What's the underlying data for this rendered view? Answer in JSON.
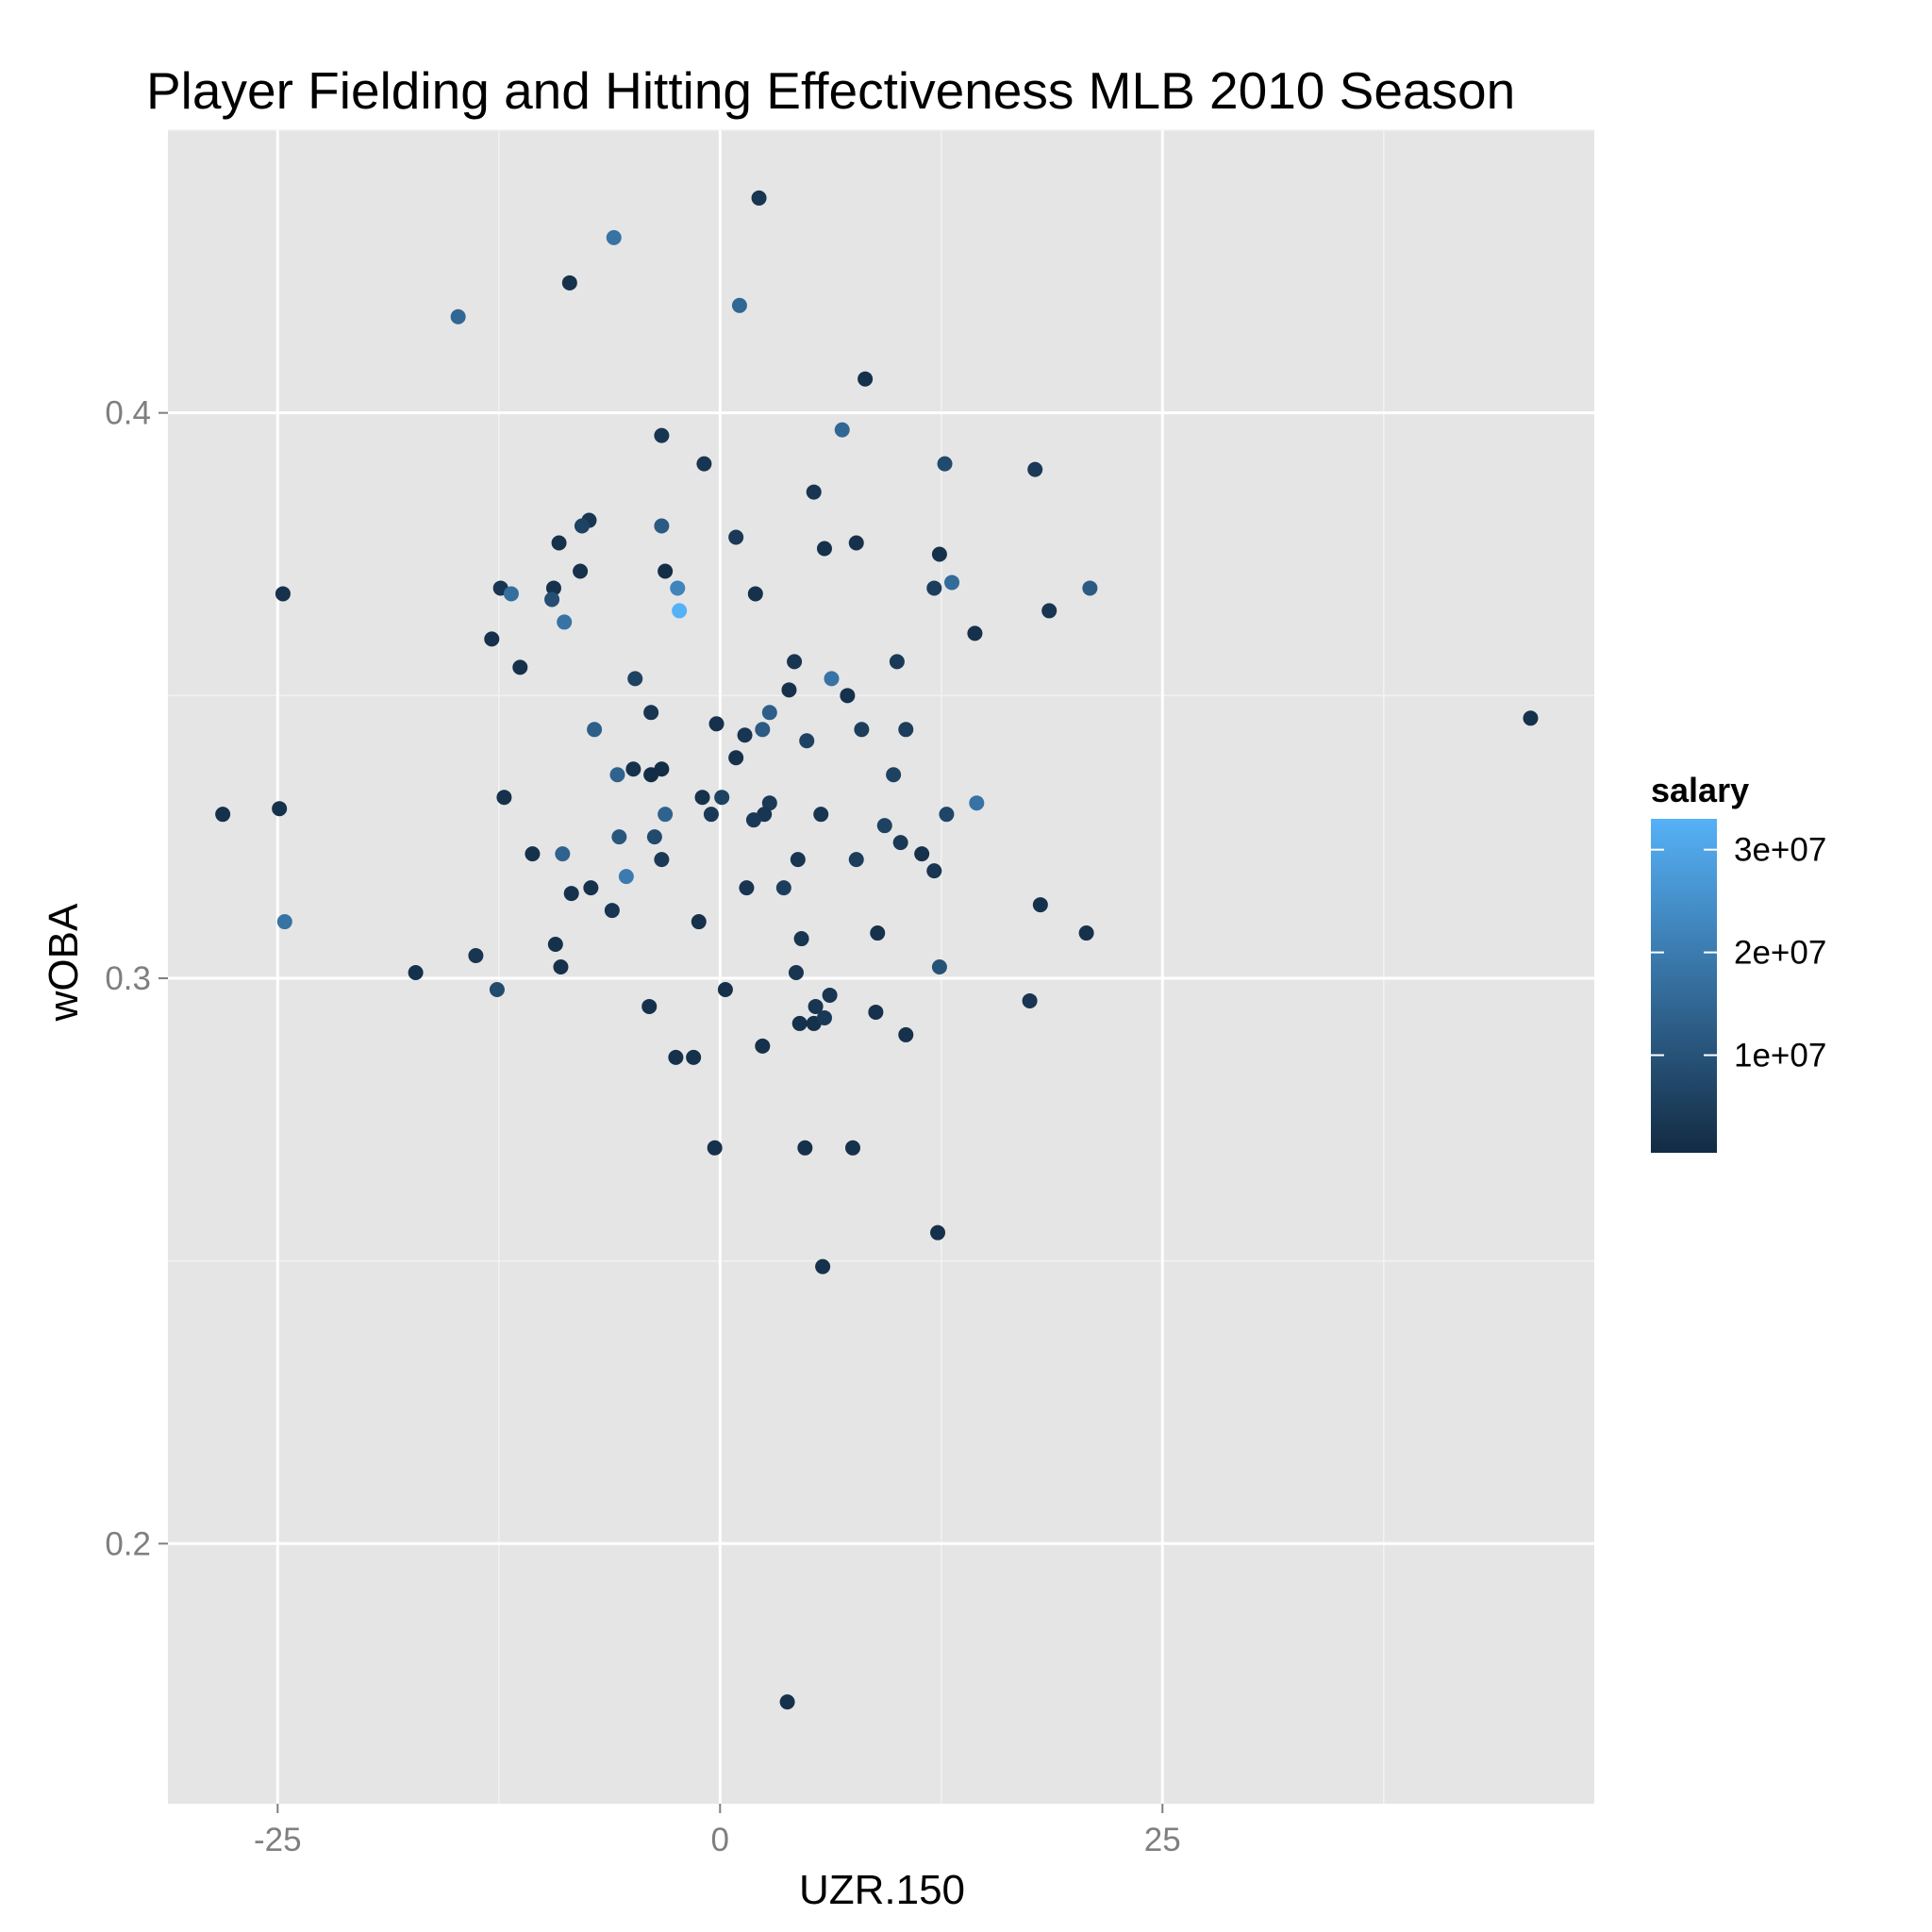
{
  "chart_data": {
    "type": "scatter",
    "title": "Player Fielding and Hitting Effectiveness MLB 2010 Season",
    "xlabel": "UZR.150",
    "ylabel": "wOBA",
    "xlim": [
      -31.2,
      49.4
    ],
    "ylim": [
      0.154,
      0.45
    ],
    "x_ticks": [
      -25,
      0,
      25
    ],
    "x_tick_labels": [
      "-25",
      "0",
      "25"
    ],
    "y_ticks": [
      0.2,
      0.3,
      0.4
    ],
    "y_tick_labels": [
      "0.2",
      "0.3",
      "0.4"
    ],
    "grid": true,
    "legend": {
      "title": "salary",
      "placement": "right",
      "type": "colorbar",
      "low_color": "#132B43",
      "high_color": "#56B1F7",
      "range": [
        500000,
        33000000
      ],
      "ticks": [
        10000000,
        20000000,
        30000000
      ],
      "tick_labels": [
        "1e+07",
        "2e+07",
        "3e+07"
      ]
    },
    "points": [
      {
        "x": 2.2,
        "y": 0.438,
        "salary": 3000000
      },
      {
        "x": -6.0,
        "y": 0.431,
        "salary": 18000000
      },
      {
        "x": -8.5,
        "y": 0.423,
        "salary": 2000000
      },
      {
        "x": -14.8,
        "y": 0.417,
        "salary": 15000000
      },
      {
        "x": 1.1,
        "y": 0.419,
        "salary": 15000000
      },
      {
        "x": 8.2,
        "y": 0.406,
        "salary": 2000000
      },
      {
        "x": 6.9,
        "y": 0.397,
        "salary": 15000000
      },
      {
        "x": -3.3,
        "y": 0.396,
        "salary": 3000000
      },
      {
        "x": -0.9,
        "y": 0.391,
        "salary": 3000000
      },
      {
        "x": 12.7,
        "y": 0.391,
        "salary": 8000000
      },
      {
        "x": 17.8,
        "y": 0.39,
        "salary": 4000000
      },
      {
        "x": 5.3,
        "y": 0.386,
        "salary": 3000000
      },
      {
        "x": -7.4,
        "y": 0.381,
        "salary": 3000000
      },
      {
        "x": -7.8,
        "y": 0.38,
        "salary": 6000000
      },
      {
        "x": -3.3,
        "y": 0.38,
        "salary": 12000000
      },
      {
        "x": 0.9,
        "y": 0.378,
        "salary": 4000000
      },
      {
        "x": -9.1,
        "y": 0.377,
        "salary": 2000000
      },
      {
        "x": 7.7,
        "y": 0.377,
        "salary": 2000000
      },
      {
        "x": 5.9,
        "y": 0.376,
        "salary": 2000000
      },
      {
        "x": 12.4,
        "y": 0.375,
        "salary": 2000000
      },
      {
        "x": -7.9,
        "y": 0.372,
        "salary": 2000000
      },
      {
        "x": -3.1,
        "y": 0.372,
        "salary": 1000000
      },
      {
        "x": -24.7,
        "y": 0.368,
        "salary": 2000000
      },
      {
        "x": -12.4,
        "y": 0.369,
        "salary": 3000000
      },
      {
        "x": -11.8,
        "y": 0.368,
        "salary": 17000000
      },
      {
        "x": -9.4,
        "y": 0.369,
        "salary": 2000000
      },
      {
        "x": -2.4,
        "y": 0.369,
        "salary": 22000000
      },
      {
        "x": 2.0,
        "y": 0.368,
        "salary": 2000000
      },
      {
        "x": 12.1,
        "y": 0.369,
        "salary": 5000000
      },
      {
        "x": 13.1,
        "y": 0.37,
        "salary": 16000000
      },
      {
        "x": 20.9,
        "y": 0.369,
        "salary": 12000000
      },
      {
        "x": -9.5,
        "y": 0.367,
        "salary": 9000000
      },
      {
        "x": -2.3,
        "y": 0.365,
        "salary": 33000000
      },
      {
        "x": 18.6,
        "y": 0.365,
        "salary": 3000000
      },
      {
        "x": -8.8,
        "y": 0.363,
        "salary": 18000000
      },
      {
        "x": -12.9,
        "y": 0.36,
        "salary": 2000000
      },
      {
        "x": 14.4,
        "y": 0.361,
        "salary": 2000000
      },
      {
        "x": -11.3,
        "y": 0.355,
        "salary": 2000000
      },
      {
        "x": 4.2,
        "y": 0.356,
        "salary": 3000000
      },
      {
        "x": 10.0,
        "y": 0.356,
        "salary": 4000000
      },
      {
        "x": -4.8,
        "y": 0.353,
        "salary": 6000000
      },
      {
        "x": 6.3,
        "y": 0.353,
        "salary": 18000000
      },
      {
        "x": 3.9,
        "y": 0.351,
        "salary": 2000000
      },
      {
        "x": 7.2,
        "y": 0.35,
        "salary": 2000000
      },
      {
        "x": 45.8,
        "y": 0.346,
        "salary": 2000000
      },
      {
        "x": -3.9,
        "y": 0.347,
        "salary": 3000000
      },
      {
        "x": 2.8,
        "y": 0.347,
        "salary": 13000000
      },
      {
        "x": -0.2,
        "y": 0.345,
        "salary": 2000000
      },
      {
        "x": -7.1,
        "y": 0.344,
        "salary": 13000000
      },
      {
        "x": 8.0,
        "y": 0.344,
        "salary": 5000000
      },
      {
        "x": 2.4,
        "y": 0.344,
        "salary": 12000000
      },
      {
        "x": 10.5,
        "y": 0.344,
        "salary": 5000000
      },
      {
        "x": 1.4,
        "y": 0.343,
        "salary": 3000000
      },
      {
        "x": 4.9,
        "y": 0.342,
        "salary": 6000000
      },
      {
        "x": 0.9,
        "y": 0.339,
        "salary": 2000000
      },
      {
        "x": -4.9,
        "y": 0.337,
        "salary": 2000000
      },
      {
        "x": -3.3,
        "y": 0.337,
        "salary": 1000000
      },
      {
        "x": -5.8,
        "y": 0.336,
        "salary": 14000000
      },
      {
        "x": -3.9,
        "y": 0.336,
        "salary": 1000000
      },
      {
        "x": 9.8,
        "y": 0.336,
        "salary": 6000000
      },
      {
        "x": -12.2,
        "y": 0.332,
        "salary": 2000000
      },
      {
        "x": -1.0,
        "y": 0.332,
        "salary": 2000000
      },
      {
        "x": 0.1,
        "y": 0.332,
        "salary": 6000000
      },
      {
        "x": -24.9,
        "y": 0.33,
        "salary": 2000000
      },
      {
        "x": 2.8,
        "y": 0.331,
        "salary": 4000000
      },
      {
        "x": 14.5,
        "y": 0.331,
        "salary": 18000000
      },
      {
        "x": -28.1,
        "y": 0.329,
        "salary": 2000000
      },
      {
        "x": -3.1,
        "y": 0.329,
        "salary": 14000000
      },
      {
        "x": -0.5,
        "y": 0.329,
        "salary": 4000000
      },
      {
        "x": 2.5,
        "y": 0.329,
        "salary": 3000000
      },
      {
        "x": 5.7,
        "y": 0.329,
        "salary": 3000000
      },
      {
        "x": 12.8,
        "y": 0.329,
        "salary": 7000000
      },
      {
        "x": 1.9,
        "y": 0.328,
        "salary": 4000000
      },
      {
        "x": 9.3,
        "y": 0.327,
        "salary": 6000000
      },
      {
        "x": -5.7,
        "y": 0.325,
        "salary": 11000000
      },
      {
        "x": -3.7,
        "y": 0.325,
        "salary": 8000000
      },
      {
        "x": 10.2,
        "y": 0.324,
        "salary": 4000000
      },
      {
        "x": -10.6,
        "y": 0.322,
        "salary": 2000000
      },
      {
        "x": -8.9,
        "y": 0.322,
        "salary": 14000000
      },
      {
        "x": 11.4,
        "y": 0.322,
        "salary": 2000000
      },
      {
        "x": -3.3,
        "y": 0.321,
        "salary": 4000000
      },
      {
        "x": 4.4,
        "y": 0.321,
        "salary": 3000000
      },
      {
        "x": 7.7,
        "y": 0.321,
        "salary": 5000000
      },
      {
        "x": 12.1,
        "y": 0.319,
        "salary": 3000000
      },
      {
        "x": -5.3,
        "y": 0.318,
        "salary": 20000000
      },
      {
        "x": -7.3,
        "y": 0.316,
        "salary": 2000000
      },
      {
        "x": -8.4,
        "y": 0.315,
        "salary": 2000000
      },
      {
        "x": 1.5,
        "y": 0.316,
        "salary": 3000000
      },
      {
        "x": 3.6,
        "y": 0.316,
        "salary": 5000000
      },
      {
        "x": 18.1,
        "y": 0.313,
        "salary": 2000000
      },
      {
        "x": -6.1,
        "y": 0.312,
        "salary": 3000000
      },
      {
        "x": -24.6,
        "y": 0.31,
        "salary": 18000000
      },
      {
        "x": -1.2,
        "y": 0.31,
        "salary": 2000000
      },
      {
        "x": 20.7,
        "y": 0.308,
        "salary": 2000000
      },
      {
        "x": 8.9,
        "y": 0.308,
        "salary": 2000000
      },
      {
        "x": -9.3,
        "y": 0.306,
        "salary": 2000000
      },
      {
        "x": 4.6,
        "y": 0.307,
        "salary": 3000000
      },
      {
        "x": -13.8,
        "y": 0.304,
        "salary": 3000000
      },
      {
        "x": -9.0,
        "y": 0.302,
        "salary": 2000000
      },
      {
        "x": 12.4,
        "y": 0.302,
        "salary": 10000000
      },
      {
        "x": -17.2,
        "y": 0.301,
        "salary": 2000000
      },
      {
        "x": 4.3,
        "y": 0.301,
        "salary": 3000000
      },
      {
        "x": -12.6,
        "y": 0.298,
        "salary": 8000000
      },
      {
        "x": 0.3,
        "y": 0.298,
        "salary": 2000000
      },
      {
        "x": 6.2,
        "y": 0.297,
        "salary": 3000000
      },
      {
        "x": 17.5,
        "y": 0.296,
        "salary": 3000000
      },
      {
        "x": -4.0,
        "y": 0.295,
        "salary": 2000000
      },
      {
        "x": 5.4,
        "y": 0.295,
        "salary": 3000000
      },
      {
        "x": 8.8,
        "y": 0.294,
        "salary": 2000000
      },
      {
        "x": 4.5,
        "y": 0.292,
        "salary": 2000000
      },
      {
        "x": 5.3,
        "y": 0.292,
        "salary": 2000000
      },
      {
        "x": 5.9,
        "y": 0.293,
        "salary": 4000000
      },
      {
        "x": 10.5,
        "y": 0.29,
        "salary": 2000000
      },
      {
        "x": 2.4,
        "y": 0.288,
        "salary": 2000000
      },
      {
        "x": -2.5,
        "y": 0.286,
        "salary": 2000000
      },
      {
        "x": -1.5,
        "y": 0.286,
        "salary": 2000000
      },
      {
        "x": -0.3,
        "y": 0.27,
        "salary": 2000000
      },
      {
        "x": 4.8,
        "y": 0.27,
        "salary": 2000000
      },
      {
        "x": 7.5,
        "y": 0.27,
        "salary": 2000000
      },
      {
        "x": 12.3,
        "y": 0.255,
        "salary": 2000000
      },
      {
        "x": 5.8,
        "y": 0.249,
        "salary": 2000000
      },
      {
        "x": 3.8,
        "y": 0.172,
        "salary": 2000000
      }
    ]
  }
}
